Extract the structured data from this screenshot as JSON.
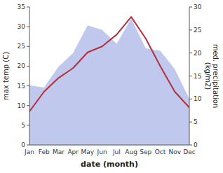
{
  "chart_data": {
    "type": "line",
    "xlabel": "date (month)",
    "ylabel": "max temp (C)",
    "y2label": "med. precipitation\n(kg/m2)",
    "categories": [
      "Jan",
      "Feb",
      "Mar",
      "Apr",
      "May",
      "Jun",
      "Jul",
      "Aug",
      "Sep",
      "Oct",
      "Nov",
      "Dec"
    ],
    "series": [
      {
        "type": "area",
        "axis": "y2",
        "color": "#c0c8ee",
        "values": [
          13.0,
          12.5,
          17.0,
          20.0,
          26.0,
          25.0,
          22.0,
          27.5,
          21.0,
          20.5,
          16.5,
          10.0
        ]
      },
      {
        "type": "line",
        "color": "#b03040",
        "values": [
          8.5,
          13.5,
          17.0,
          19.5,
          23.5,
          25.0,
          28.0,
          32.5,
          27.0,
          20.0,
          13.5,
          9.5
        ]
      }
    ],
    "ylim": [
      0,
      35
    ],
    "yticks": [
      0,
      5,
      10,
      15,
      20,
      25,
      30,
      35
    ],
    "y2lim": [
      0,
      30
    ],
    "y2ticks": [
      0,
      5,
      10,
      15,
      20,
      25,
      30
    ],
    "grid": false
  }
}
